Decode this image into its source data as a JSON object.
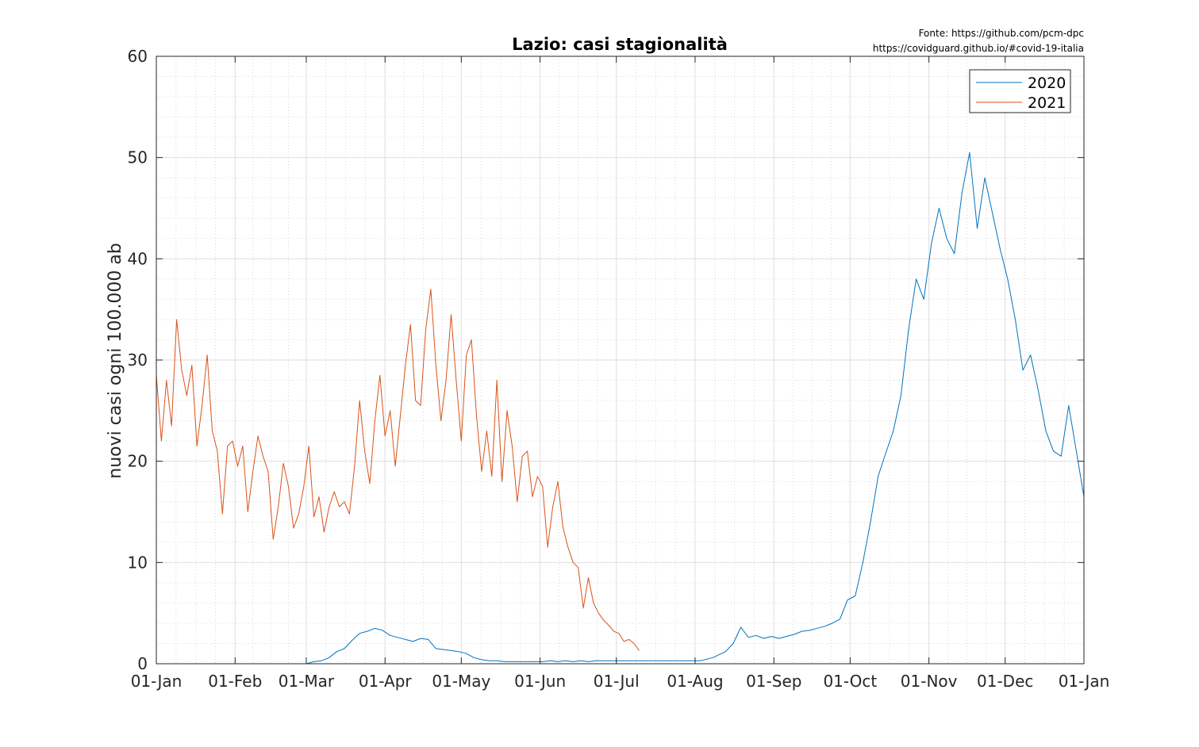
{
  "source": {
    "line1": "Fonte: https://github.com/pcm-dpc",
    "line2": "https://covidguard.github.io/#covid-19-italia"
  },
  "chart_data": {
    "type": "line",
    "title": "Lazio: casi stagionalità",
    "xlabel": "",
    "ylabel": "nuovi casi ogni 100.000 ab",
    "xlim": [
      "01-Jan",
      "01-Jan"
    ],
    "ylim": [
      0,
      60
    ],
    "xticks": [
      "01-Jan",
      "01-Feb",
      "01-Mar",
      "01-Apr",
      "01-May",
      "01-Jun",
      "01-Jul",
      "01-Aug",
      "01-Sep",
      "01-Oct",
      "01-Nov",
      "01-Dec",
      "01-Jan"
    ],
    "yticks": [
      0,
      10,
      20,
      30,
      40,
      50,
      60
    ],
    "grid": "major and minor",
    "legend_position": "top-right",
    "series": [
      {
        "name": "2020",
        "color": "#0072bd",
        "x_unit": "day of year",
        "x": [
          60,
          63,
          66,
          69,
          72,
          75,
          78,
          81,
          84,
          87,
          90,
          93,
          96,
          99,
          102,
          105,
          108,
          111,
          114,
          117,
          120,
          123,
          126,
          129,
          132,
          135,
          138,
          141,
          144,
          147,
          150,
          153,
          156,
          159,
          162,
          165,
          168,
          171,
          174,
          177,
          180,
          185,
          190,
          195,
          200,
          205,
          210,
          215,
          220,
          225,
          228,
          231,
          234,
          237,
          240,
          243,
          246,
          249,
          252,
          255,
          258,
          261,
          264,
          267,
          270,
          273,
          276,
          279,
          282,
          285,
          288,
          291,
          294,
          297,
          300,
          303,
          306,
          309,
          312,
          315,
          318,
          321,
          324,
          327,
          330,
          333,
          336,
          339,
          342,
          345,
          348,
          351,
          354,
          357,
          360,
          363,
          366
        ],
        "values": [
          0.0,
          0.2,
          0.3,
          0.6,
          1.2,
          1.5,
          2.3,
          3.0,
          3.2,
          3.5,
          3.3,
          2.8,
          2.6,
          2.4,
          2.2,
          2.5,
          2.4,
          1.5,
          1.4,
          1.3,
          1.2,
          1.0,
          0.6,
          0.4,
          0.3,
          0.3,
          0.2,
          0.2,
          0.2,
          0.2,
          0.2,
          0.2,
          0.3,
          0.2,
          0.3,
          0.2,
          0.3,
          0.2,
          0.3,
          0.3,
          0.3,
          0.3,
          0.3,
          0.3,
          0.3,
          0.3,
          0.3,
          0.3,
          0.6,
          1.2,
          2.0,
          3.6,
          2.6,
          2.8,
          2.5,
          2.7,
          2.5,
          2.7,
          2.9,
          3.2,
          3.3,
          3.5,
          3.7,
          4.0,
          4.4,
          6.3,
          6.7,
          10.0,
          14.0,
          18.5,
          20.8,
          23.0,
          26.5,
          33.0,
          38.0,
          36.0,
          41.5,
          45.0,
          42.0,
          40.5,
          46.5,
          50.5,
          43.0,
          48.0,
          44.5,
          41.0,
          38.0,
          34.0,
          29.0,
          30.5,
          27.0,
          23.0,
          21.0,
          20.5,
          25.5,
          21.0,
          16.5
        ]
      },
      {
        "name": "2021",
        "color": "#d95319",
        "x_unit": "day of year",
        "x": [
          1,
          3,
          5,
          7,
          9,
          11,
          13,
          15,
          17,
          19,
          21,
          23,
          25,
          27,
          29,
          31,
          33,
          35,
          37,
          39,
          41,
          43,
          45,
          47,
          49,
          51,
          53,
          55,
          57,
          59,
          61,
          63,
          65,
          67,
          69,
          71,
          73,
          75,
          77,
          79,
          81,
          83,
          85,
          87,
          89,
          91,
          93,
          95,
          97,
          99,
          101,
          103,
          105,
          107,
          109,
          111,
          113,
          115,
          117,
          119,
          121,
          123,
          125,
          127,
          129,
          131,
          133,
          135,
          137,
          139,
          141,
          143,
          145,
          147,
          149,
          151,
          153,
          155,
          157,
          159,
          161,
          163,
          165,
          167,
          169,
          171,
          173,
          175,
          177,
          179,
          181,
          183,
          185,
          187,
          189,
          191
        ],
        "values": [
          28.5,
          22.0,
          28.0,
          23.5,
          34.0,
          29.0,
          26.5,
          29.5,
          21.5,
          25.5,
          30.5,
          23.0,
          21.0,
          14.8,
          21.5,
          22.0,
          19.5,
          21.5,
          15.0,
          19.0,
          22.5,
          20.5,
          19.0,
          12.3,
          15.5,
          19.8,
          17.5,
          13.4,
          14.8,
          17.5,
          21.5,
          14.5,
          16.5,
          13.0,
          15.5,
          17.0,
          15.5,
          16.0,
          14.8,
          19.5,
          26.0,
          21.0,
          17.8,
          24.0,
          28.5,
          22.5,
          25.0,
          19.5,
          24.5,
          29.5,
          33.5,
          26.0,
          25.5,
          33.0,
          37.0,
          29.5,
          24.0,
          28.0,
          34.5,
          28.0,
          22.0,
          30.5,
          32.0,
          24.5,
          19.0,
          23.0,
          18.5,
          28.0,
          18.0,
          25.0,
          21.5,
          16.0,
          20.5,
          21.0,
          16.5,
          18.5,
          17.5,
          11.5,
          15.5,
          18.0,
          13.5,
          11.5,
          10.0,
          9.5,
          5.5,
          8.5,
          6.0,
          5.0,
          4.3,
          3.8,
          3.2,
          3.0,
          2.2,
          2.4,
          2.0,
          1.3
        ]
      }
    ]
  }
}
